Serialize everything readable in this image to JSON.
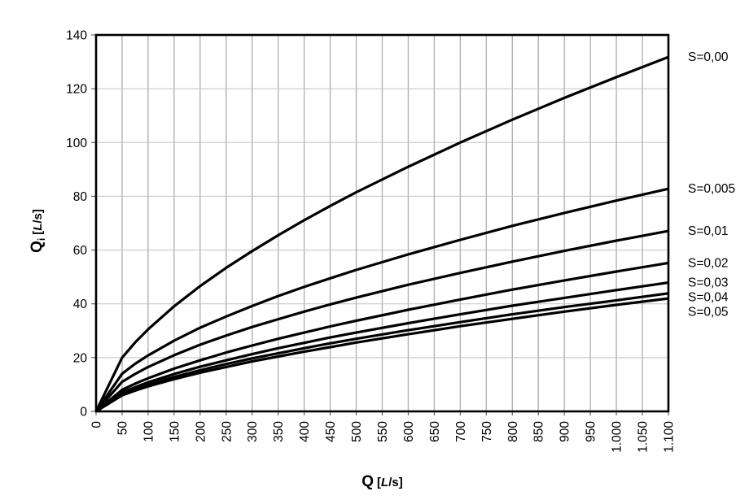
{
  "chart_data": {
    "type": "line",
    "title": "",
    "xlabel": "Q [L/s]",
    "ylabel": "Qi [L/s]",
    "grid": true,
    "legend_position": "right-of-plot",
    "x_axis": {
      "title_symbol": "Q",
      "title_unit_open": "[",
      "title_unit_italic": "L",
      "title_unit_close": "/s]",
      "min": 0,
      "max": 1100,
      "tick_step": 50,
      "ticks": [
        {
          "v": 0,
          "label": "0"
        },
        {
          "v": 50,
          "label": "50"
        },
        {
          "v": 100,
          "label": "100"
        },
        {
          "v": 150,
          "label": "150"
        },
        {
          "v": 200,
          "label": "200"
        },
        {
          "v": 250,
          "label": "250"
        },
        {
          "v": 300,
          "label": "300"
        },
        {
          "v": 350,
          "label": "350"
        },
        {
          "v": 400,
          "label": "400"
        },
        {
          "v": 450,
          "label": "450"
        },
        {
          "v": 500,
          "label": "500"
        },
        {
          "v": 550,
          "label": "550"
        },
        {
          "v": 600,
          "label": "600"
        },
        {
          "v": 650,
          "label": "650"
        },
        {
          "v": 700,
          "label": "700"
        },
        {
          "v": 750,
          "label": "750"
        },
        {
          "v": 800,
          "label": "800"
        },
        {
          "v": 850,
          "label": "850"
        },
        {
          "v": 900,
          "label": "900"
        },
        {
          "v": 950,
          "label": "950"
        },
        {
          "v": 1000,
          "label": "1.000"
        },
        {
          "v": 1050,
          "label": "1.050"
        },
        {
          "v": 1100,
          "label": "1.100"
        }
      ]
    },
    "y_axis": {
      "title_symbol": "Q",
      "title_subscript": "i",
      "title_unit_open": "[",
      "title_unit_italic": "L",
      "title_unit_close": "/s]",
      "min": 0,
      "max": 140,
      "tick_step": 20,
      "ticks": [
        {
          "v": 0,
          "label": "0"
        },
        {
          "v": 20,
          "label": "20"
        },
        {
          "v": 40,
          "label": "40"
        },
        {
          "v": 60,
          "label": "60"
        },
        {
          "v": 80,
          "label": "80"
        },
        {
          "v": 100,
          "label": "100"
        },
        {
          "v": 120,
          "label": "120"
        },
        {
          "v": 140,
          "label": "140"
        }
      ]
    },
    "series": [
      {
        "name": "S=0,00",
        "slope": 0.0,
        "points": [
          [
            0,
            0
          ],
          [
            10,
            4
          ],
          [
            20,
            8
          ],
          [
            30,
            12
          ],
          [
            40,
            16
          ],
          [
            50,
            20
          ],
          [
            75,
            25.6
          ],
          [
            100,
            30.5
          ],
          [
            150,
            39.1
          ],
          [
            200,
            46.6
          ],
          [
            250,
            53.4
          ],
          [
            300,
            59.6
          ],
          [
            350,
            65.5
          ],
          [
            400,
            71.1
          ],
          [
            450,
            76.4
          ],
          [
            500,
            81.5
          ],
          [
            600,
            91
          ],
          [
            700,
            100
          ],
          [
            800,
            108.5
          ],
          [
            900,
            116.6
          ],
          [
            1000,
            124.3
          ],
          [
            1100,
            131.8
          ]
        ]
      },
      {
        "name": "S=0,005",
        "slope": 0.005,
        "points": [
          [
            0,
            0
          ],
          [
            10,
            2.8
          ],
          [
            20,
            5.6
          ],
          [
            30,
            8.4
          ],
          [
            40,
            11.2
          ],
          [
            50,
            14
          ],
          [
            75,
            17.7
          ],
          [
            100,
            20.8
          ],
          [
            150,
            26.3
          ],
          [
            200,
            31.1
          ],
          [
            250,
            35.3
          ],
          [
            300,
            39.2
          ],
          [
            350,
            42.9
          ],
          [
            400,
            46.3
          ],
          [
            450,
            49.5
          ],
          [
            500,
            52.6
          ],
          [
            600,
            58.4
          ],
          [
            700,
            63.8
          ],
          [
            800,
            69
          ],
          [
            900,
            73.8
          ],
          [
            1000,
            78.4
          ],
          [
            1100,
            82.8
          ]
        ]
      },
      {
        "name": "S=0,01",
        "slope": 0.01,
        "points": [
          [
            0,
            0
          ],
          [
            10,
            2.2
          ],
          [
            20,
            4.4
          ],
          [
            30,
            6.6
          ],
          [
            40,
            8.8
          ],
          [
            50,
            11
          ],
          [
            75,
            13.9
          ],
          [
            100,
            16.5
          ],
          [
            150,
            20.9
          ],
          [
            200,
            24.8
          ],
          [
            250,
            28.2
          ],
          [
            300,
            31.4
          ],
          [
            350,
            34.3
          ],
          [
            400,
            37.1
          ],
          [
            450,
            39.8
          ],
          [
            500,
            42.3
          ],
          [
            600,
            47.1
          ],
          [
            700,
            51.5
          ],
          [
            800,
            55.7
          ],
          [
            900,
            59.7
          ],
          [
            1000,
            63.5
          ],
          [
            1100,
            67.1
          ]
        ]
      },
      {
        "name": "S=0,02",
        "slope": 0.02,
        "points": [
          [
            0,
            0
          ],
          [
            10,
            1.6
          ],
          [
            20,
            3.2
          ],
          [
            30,
            4.8
          ],
          [
            40,
            6.4
          ],
          [
            50,
            8
          ],
          [
            75,
            10.3
          ],
          [
            100,
            12.3
          ],
          [
            150,
            15.9
          ],
          [
            200,
            19
          ],
          [
            250,
            21.9
          ],
          [
            300,
            24.5
          ],
          [
            350,
            27
          ],
          [
            400,
            29.3
          ],
          [
            450,
            31.6
          ],
          [
            500,
            33.7
          ],
          [
            600,
            37.8
          ],
          [
            700,
            41.6
          ],
          [
            800,
            45.3
          ],
          [
            900,
            48.7
          ],
          [
            1000,
            52
          ],
          [
            1100,
            55.2
          ]
        ]
      },
      {
        "name": "S=0,03",
        "slope": 0.03,
        "points": [
          [
            0,
            0
          ],
          [
            10,
            1.4
          ],
          [
            20,
            2.8
          ],
          [
            30,
            4.2
          ],
          [
            40,
            5.6
          ],
          [
            50,
            7
          ],
          [
            75,
            9
          ],
          [
            100,
            10.8
          ],
          [
            150,
            13.9
          ],
          [
            200,
            16.6
          ],
          [
            250,
            19
          ],
          [
            300,
            21.3
          ],
          [
            350,
            23.5
          ],
          [
            400,
            25.5
          ],
          [
            450,
            27.5
          ],
          [
            500,
            29.3
          ],
          [
            600,
            32.8
          ],
          [
            700,
            36.1
          ],
          [
            800,
            39.3
          ],
          [
            900,
            42.2
          ],
          [
            1000,
            45.1
          ],
          [
            1100,
            47.9
          ]
        ]
      },
      {
        "name": "S=0,04",
        "slope": 0.04,
        "points": [
          [
            0,
            0
          ],
          [
            10,
            1.3
          ],
          [
            20,
            2.6
          ],
          [
            30,
            3.9
          ],
          [
            40,
            5.2
          ],
          [
            50,
            6.5
          ],
          [
            75,
            8.3
          ],
          [
            100,
            10
          ],
          [
            150,
            12.8
          ],
          [
            200,
            15.3
          ],
          [
            250,
            17.6
          ],
          [
            300,
            19.7
          ],
          [
            350,
            21.6
          ],
          [
            400,
            23.5
          ],
          [
            450,
            25.3
          ],
          [
            500,
            27
          ],
          [
            600,
            30.2
          ],
          [
            700,
            33.2
          ],
          [
            800,
            36.1
          ],
          [
            900,
            38.8
          ],
          [
            1000,
            41.3
          ],
          [
            1100,
            43.9
          ]
        ]
      },
      {
        "name": "S=0,05",
        "slope": 0.05,
        "points": [
          [
            0,
            0
          ],
          [
            10,
            1.2
          ],
          [
            20,
            2.4
          ],
          [
            30,
            3.6
          ],
          [
            40,
            4.8
          ],
          [
            50,
            6
          ],
          [
            75,
            7.7
          ],
          [
            100,
            9.3
          ],
          [
            150,
            12
          ],
          [
            200,
            14.4
          ],
          [
            250,
            16.5
          ],
          [
            300,
            18.6
          ],
          [
            350,
            20.4
          ],
          [
            400,
            22.2
          ],
          [
            450,
            23.9
          ],
          [
            500,
            25.6
          ],
          [
            600,
            28.7
          ],
          [
            700,
            31.7
          ],
          [
            800,
            34.4
          ],
          [
            900,
            37.1
          ],
          [
            1000,
            39.6
          ],
          [
            1100,
            42
          ]
        ]
      }
    ]
  },
  "style": {
    "background": "#ffffff",
    "curve_color": "#000000",
    "grid_color": "#b3b3b3",
    "grid_color_light": "#c2c2c2",
    "tick_color": "#666666",
    "axis_color": "#000000",
    "text_color": "#000000"
  }
}
